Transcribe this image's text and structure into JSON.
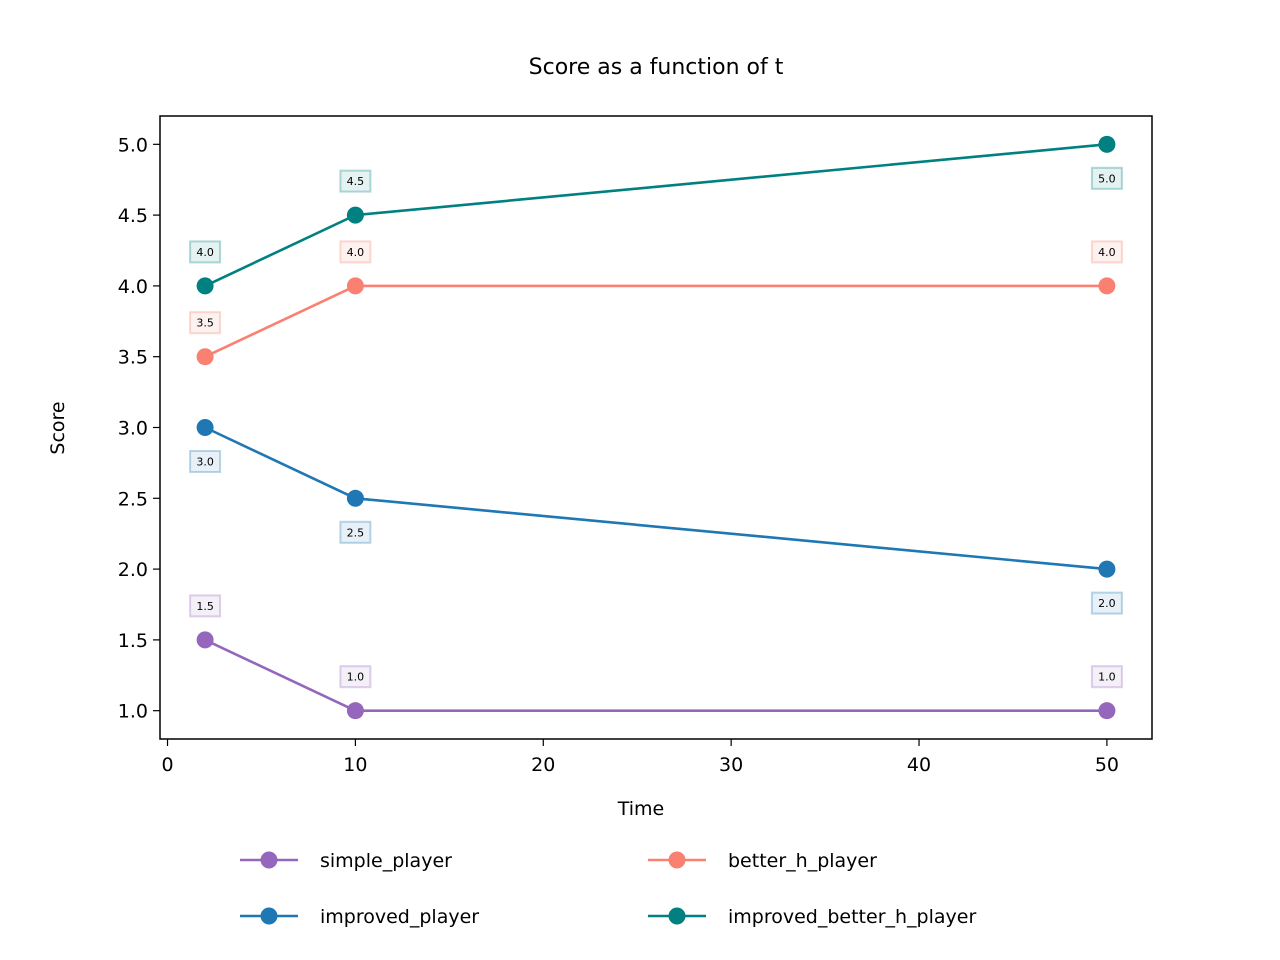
{
  "chart_data": {
    "type": "line",
    "title": "Score as a function of t",
    "xlabel": "Time",
    "ylabel": "Score",
    "x": [
      2,
      10,
      50
    ],
    "xlim": [
      -0.4,
      52.4
    ],
    "ylim": [
      0.8,
      5.2
    ],
    "xticks": [
      0,
      10,
      20,
      30,
      40,
      50
    ],
    "yticks": [
      1.0,
      1.5,
      2.0,
      2.5,
      3.0,
      3.5,
      4.0,
      4.5,
      5.0
    ],
    "grid": false,
    "legend_position": "bottom",
    "series": [
      {
        "name": "simple_player",
        "color": "#9467bd",
        "values": [
          1.5,
          1.0,
          1.0
        ],
        "labels": [
          "1.5",
          "1.0",
          "1.0"
        ],
        "label_position": [
          "above",
          "above",
          "above"
        ]
      },
      {
        "name": "improved_player",
        "color": "#1f77b4",
        "values": [
          3.0,
          2.5,
          2.0
        ],
        "labels": [
          "3.0",
          "2.5",
          "2.0"
        ],
        "label_position": [
          "below",
          "below",
          "below"
        ]
      },
      {
        "name": "better_h_player",
        "color": "#fa8072",
        "values": [
          3.5,
          4.0,
          4.0
        ],
        "labels": [
          "3.5",
          "4.0",
          "4.0"
        ],
        "label_position": [
          "above",
          "above",
          "above"
        ]
      },
      {
        "name": "improved_better_h_player",
        "color": "#008080",
        "values": [
          4.0,
          4.5,
          5.0
        ],
        "labels": [
          "4.0",
          "4.5",
          "5.0"
        ],
        "label_position": [
          "above",
          "above",
          "below"
        ]
      }
    ]
  }
}
